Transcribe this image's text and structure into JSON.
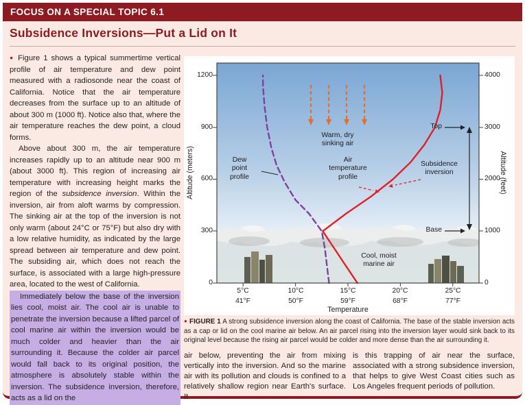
{
  "header": {
    "title": "FOCUS ON A SPECIAL TOPIC 6.1"
  },
  "article": {
    "title": "Subsidence Inversions—Put a Lid on It",
    "bullet": "●",
    "p1": "Figure 1 shows a typical summertime vertical profile of air temperature and dew point measured with a radiosonde near the coast of California. Notice that the air temperature decreases from the surface up to an altitude of about 300 m (1000 ft). Notice also that, where the air temperature reaches the dew point, a cloud forms.",
    "p2_pre": "Above about 300 m, the air temperature increases rapidly up to an altitude near 900 m (about 3000 ft). This region of increasing air temperature with increasing height marks the region of the ",
    "p2_italic": "subsidence inversion",
    "p2_post": ". Within the inversion, air from aloft warms by compression. The sinking air at the top of the inversion is not only warm (about 24°C or 75°F) but also dry with a low relative humidity, as indicated by the large spread between air temperature and dew point. The subsiding air, which does not reach the surface, is associated with a large high-pressure area, located to the west of California.",
    "p3_highlighted": "Immediately below the base of the inversion lies cool, moist air. The cool air is unable to penetrate the inversion because a lifted parcel of cool marine air within the inversion would be much colder and heavier than the air surrounding it. Because the colder air parcel would fall back to its original position, the atmosphere is absolutely stable within the inversion. The subsidence inversion, therefore, acts as a lid on the",
    "continuation_left": "air below, preventing the air from mixing vertically into the inversion. And so the marine air with its pollution and clouds is confined to a relatively shallow region near Earth's surface. It",
    "continuation_right": "is this trapping of air near the surface, associated with a strong subsidence inversion, that helps to give West Coast cities such as Los Angeles frequent periods of pollution."
  },
  "caption": {
    "bullet": "●",
    "label": "FIGURE 1",
    "text": "A strong subsidence inversion along the coast of California. The base of the stable inversion acts as a cap or lid on the cool marine air below. An air parcel rising into the inversion layer would sink back to its original level because the rising air parcel would be colder and more dense than the air surrounding it."
  },
  "chart_data": {
    "type": "line",
    "xlabel": "Temperature",
    "ylabel_left": "Altitude (meters)",
    "ylabel_right": "Altitude (feet)",
    "x_ticks_celsius": [
      "5°C",
      "10°C",
      "15°C",
      "20°C",
      "25°C"
    ],
    "x_ticks_fahrenheit": [
      "41°F",
      "50°F",
      "59°F",
      "68°F",
      "77°F"
    ],
    "y_ticks_meters": [
      "0",
      "300",
      "600",
      "900",
      "1200"
    ],
    "y_ticks_feet": [
      "0",
      "1000",
      "2000",
      "3000",
      "4000"
    ],
    "x_range_celsius": [
      2.5,
      27.5
    ],
    "y_range_meters": [
      0,
      1200
    ],
    "grid": false,
    "series": [
      {
        "name": "Dew point profile",
        "line_style": "dashed",
        "color": "#8040a0",
        "points_temp_c_alt_m": [
          [
            13.2,
            0
          ],
          [
            13.0,
            100
          ],
          [
            12.8,
            200
          ],
          [
            12.5,
            300
          ],
          [
            11.3,
            400
          ],
          [
            10.0,
            480
          ],
          [
            9.0,
            580
          ],
          [
            8.2,
            680
          ],
          [
            7.7,
            780
          ],
          [
            7.3,
            900
          ],
          [
            7.05,
            1020
          ],
          [
            6.9,
            1140
          ],
          [
            6.9,
            1200
          ]
        ]
      },
      {
        "name": "Air temperature profile",
        "line_style": "solid",
        "color": "#e11f26",
        "points_temp_c_alt_m": [
          [
            15.9,
            0
          ],
          [
            14.8,
            100
          ],
          [
            13.7,
            200
          ],
          [
            12.6,
            300
          ],
          [
            14.8,
            400
          ],
          [
            17.2,
            500
          ],
          [
            19.3,
            600
          ],
          [
            21.0,
            700
          ],
          [
            22.3,
            800
          ],
          [
            23.3,
            900
          ],
          [
            23.8,
            1000
          ],
          [
            24.0,
            1100
          ],
          [
            23.8,
            1200
          ]
        ]
      }
    ],
    "annotations": {
      "warm_dry_sinking_air": "Warm, dry\nsinking air",
      "dew_point_profile": "Dew\npoint\nprofile",
      "air_temperature_profile": "Air\ntemperature\nprofile",
      "subsidence_inversion": "Subsidence\ninversion",
      "inversion_top_label": "Top",
      "inversion_base_label": "Base",
      "cool_moist_marine_air": "Cool, moist\nmarine air",
      "inversion_top_altitude_m": 900,
      "inversion_base_altitude_m": 300
    }
  }
}
